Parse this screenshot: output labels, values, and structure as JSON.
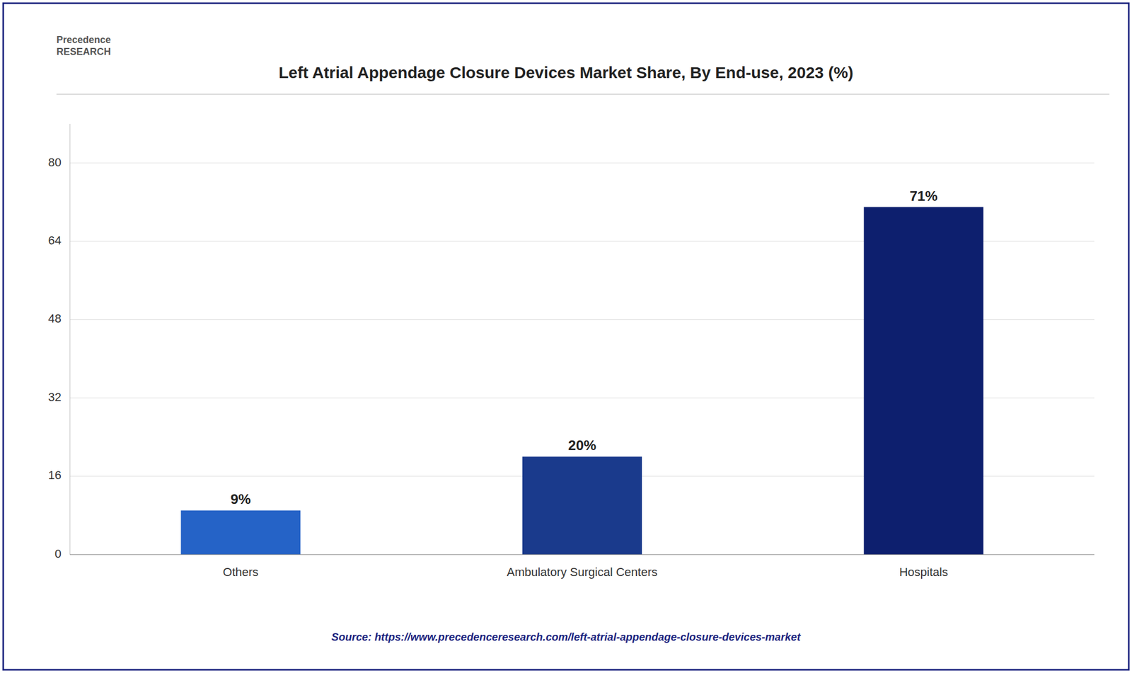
{
  "chart_data": {
    "type": "bar",
    "title": "Left Atrial Appendage Closure Devices Market Share, By End-use, 2023 (%)",
    "categories": [
      "Others",
      "Ambulatory Surgical Centers",
      "Hospitals"
    ],
    "values": [
      9,
      20,
      71
    ],
    "value_labels": [
      "9%",
      "20%",
      "71%"
    ],
    "data_labels": true,
    "colors": [
      "#2563c7",
      "#1a3a8c",
      "#0d1f6e"
    ],
    "ylim": [
      0,
      88
    ],
    "yticks": [
      0,
      16,
      32,
      48,
      64,
      80
    ],
    "grid": true,
    "annotations": [
      "Precedence\nRESEARCH",
      "Source: https://www.precedenceresearch.com/left-atrial-appendage-closure-devices-market"
    ]
  }
}
